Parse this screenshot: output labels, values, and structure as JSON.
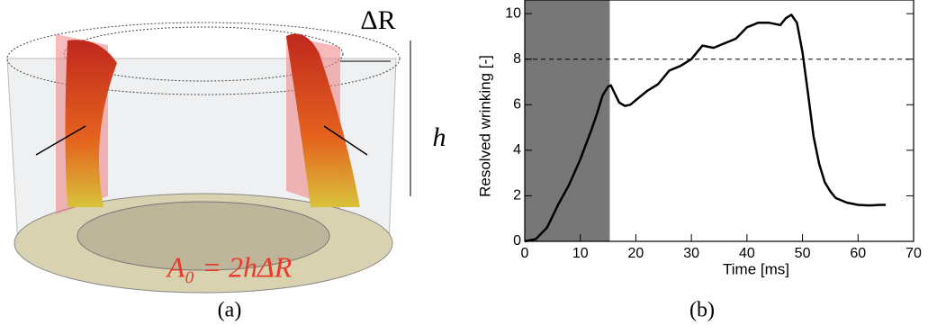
{
  "figure": {
    "delta_r_label": "ΔR",
    "h_label": "h",
    "area_label": "A₀ = 2hΔR",
    "caption_a": "(a)",
    "caption_b": "(b)"
  },
  "chart_data": {
    "type": "line",
    "xlabel": "Time [ms]",
    "ylabel": "Resolved wrinking [-]",
    "x": [
      0,
      2,
      4,
      6,
      8,
      10,
      12,
      13,
      14,
      15,
      15.5,
      16,
      17,
      18,
      19,
      20,
      22,
      24,
      26,
      28,
      30,
      32,
      34,
      36,
      38,
      40,
      42,
      44,
      46,
      47,
      48,
      49,
      50,
      51,
      52,
      53,
      54,
      55,
      56,
      58,
      60,
      62,
      64,
      65
    ],
    "values": [
      0,
      0.1,
      0.6,
      1.6,
      2.5,
      3.6,
      4.9,
      5.6,
      6.4,
      6.8,
      6.85,
      6.6,
      6.1,
      5.95,
      6.0,
      6.2,
      6.6,
      6.9,
      7.5,
      7.7,
      8.0,
      8.6,
      8.5,
      8.7,
      8.9,
      9.4,
      9.6,
      9.6,
      9.5,
      9.8,
      9.95,
      9.6,
      8.3,
      6.5,
      4.6,
      3.4,
      2.6,
      2.2,
      1.9,
      1.7,
      1.6,
      1.58,
      1.6,
      1.6
    ],
    "color": "#000000",
    "xlim": [
      0,
      70
    ],
    "xticks": [
      0,
      10,
      20,
      30,
      40,
      50,
      60,
      70
    ],
    "ylim": [
      0,
      10.6
    ],
    "yticks": [
      0,
      2,
      4,
      6,
      8,
      10
    ],
    "shaded_span": [
      0,
      15.3
    ],
    "reference_line": 8
  }
}
